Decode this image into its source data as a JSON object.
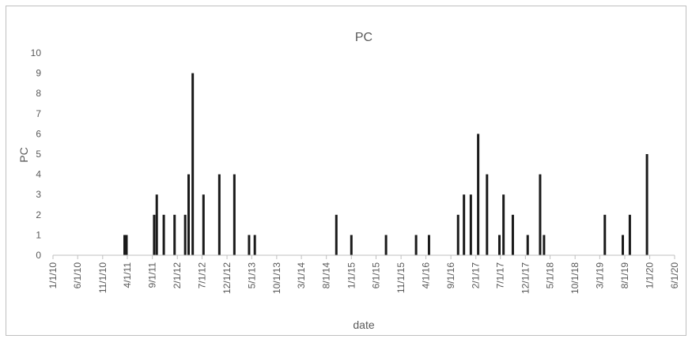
{
  "chart_data": {
    "type": "bar",
    "title": "PC",
    "xlabel": "date",
    "ylabel": "PC",
    "ylim": [
      0,
      10
    ],
    "yticks": [
      "0",
      "1",
      "2",
      "3",
      "4",
      "5",
      "6",
      "7",
      "8",
      "9",
      "10"
    ],
    "xlim": [
      "2010-01-01",
      "2020-06-01"
    ],
    "xticks": [
      "1/1/10",
      "6/1/10",
      "11/1/10",
      "4/1/11",
      "9/1/11",
      "2/1/12",
      "7/1/12",
      "12/1/12",
      "5/1/13",
      "10/1/13",
      "3/1/14",
      "8/1/14",
      "1/1/15",
      "6/1/15",
      "11/1/15",
      "4/1/16",
      "9/1/16",
      "2/1/17",
      "7/1/17",
      "12/1/17",
      "5/1/18",
      "10/1/18",
      "3/1/19",
      "8/1/19",
      "1/1/20",
      "6/1/20"
    ],
    "grid": false,
    "legend": "none",
    "bar_color": "#1a1a1a",
    "points": [
      {
        "x": "2011-03-15",
        "y": 1
      },
      {
        "x": "2011-03-27",
        "y": 1
      },
      {
        "x": "2011-09-12",
        "y": 2
      },
      {
        "x": "2011-09-28",
        "y": 3
      },
      {
        "x": "2011-11-10",
        "y": 2
      },
      {
        "x": "2012-01-15",
        "y": 2
      },
      {
        "x": "2012-03-20",
        "y": 2
      },
      {
        "x": "2012-04-10",
        "y": 4
      },
      {
        "x": "2012-05-05",
        "y": 9
      },
      {
        "x": "2012-07-10",
        "y": 3
      },
      {
        "x": "2012-10-15",
        "y": 4
      },
      {
        "x": "2013-01-15",
        "y": 4
      },
      {
        "x": "2013-04-15",
        "y": 1
      },
      {
        "x": "2013-05-20",
        "y": 1
      },
      {
        "x": "2014-10-01",
        "y": 2
      },
      {
        "x": "2015-01-01",
        "y": 1
      },
      {
        "x": "2015-08-01",
        "y": 1
      },
      {
        "x": "2016-02-01",
        "y": 1
      },
      {
        "x": "2016-04-20",
        "y": 1
      },
      {
        "x": "2016-10-15",
        "y": 2
      },
      {
        "x": "2016-11-20",
        "y": 3
      },
      {
        "x": "2017-01-01",
        "y": 3
      },
      {
        "x": "2017-02-15",
        "y": 6
      },
      {
        "x": "2017-04-10",
        "y": 4
      },
      {
        "x": "2017-06-25",
        "y": 1
      },
      {
        "x": "2017-07-20",
        "y": 3
      },
      {
        "x": "2017-09-15",
        "y": 2
      },
      {
        "x": "2017-12-15",
        "y": 1
      },
      {
        "x": "2018-03-01",
        "y": 4
      },
      {
        "x": "2018-03-25",
        "y": 1
      },
      {
        "x": "2019-04-01",
        "y": 2
      },
      {
        "x": "2019-07-20",
        "y": 1
      },
      {
        "x": "2019-09-01",
        "y": 2
      },
      {
        "x": "2019-12-15",
        "y": 5
      }
    ]
  }
}
